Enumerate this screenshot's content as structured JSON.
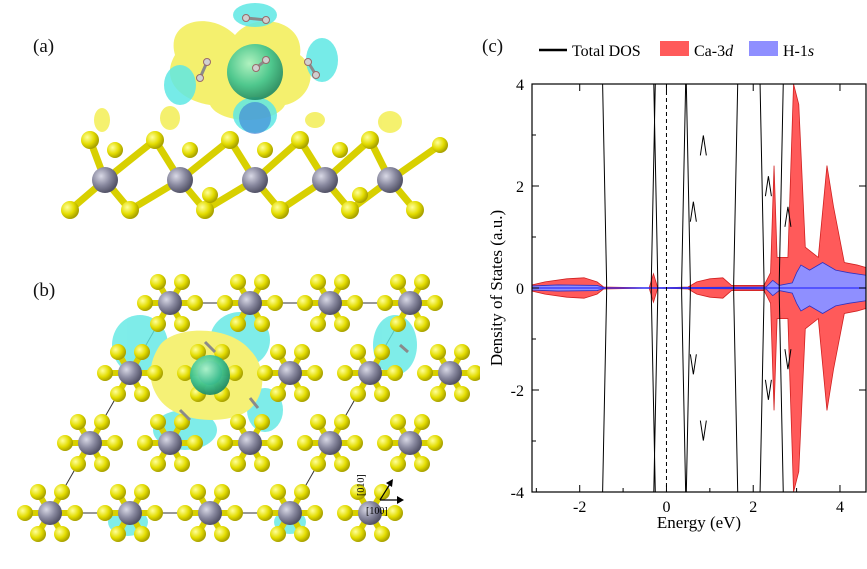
{
  "panels": {
    "a": "(a)",
    "b": "(b)",
    "c": "(c)"
  },
  "axis_indicator": {
    "dir1": "[010]",
    "dir2": "[100]"
  },
  "colors": {
    "sulfur": "#e8e000",
    "metal": "#85859a",
    "isosurface_yellow": "#f3ee55",
    "isosurface_cyan": "#5fe8e4",
    "calcium": "#3dc391",
    "total_dos": "#000000",
    "ca3d": "#ff5a5a",
    "h1s": "#8f8fff"
  },
  "chart_data": {
    "type": "area",
    "xlabel": "Energy (eV)",
    "ylabel": "Density of States (a.u.)",
    "xlim": [
      -3.1,
      4.6
    ],
    "ylim": [
      -4,
      4
    ],
    "xticks": [
      "-2",
      "0",
      "2",
      "4"
    ],
    "yticks": [
      "-4",
      "-2",
      "0",
      "2",
      "4"
    ],
    "fermi_level": 0,
    "legend": [
      {
        "name": "Total DOS",
        "kind": "line",
        "color": "#000000"
      },
      {
        "name": "Ca-3",
        "name_italic": "d",
        "kind": "fill",
        "color": "#ff5a5a"
      },
      {
        "name": "H-1",
        "name_italic": "s",
        "kind": "fill",
        "color": "#8f8fff"
      }
    ],
    "series": [
      {
        "name": "Total DOS",
        "kind": "line",
        "band_edges": [
          {
            "e": -1.38,
            "y": 4
          },
          {
            "e": -0.35,
            "y": 4
          },
          {
            "e": -0.2,
            "y": 4
          },
          {
            "e": 0.35,
            "y": 4
          },
          {
            "e": 0.55,
            "y": 4
          },
          {
            "e": 1.55,
            "y": 4
          },
          {
            "e": 2.25,
            "y": 4
          },
          {
            "e": 2.6,
            "y": 4
          }
        ]
      },
      {
        "name": "Ca-3d",
        "kind": "fill",
        "points": [
          {
            "e": -3.1,
            "y": 0.06
          },
          {
            "e": -2.8,
            "y": 0.12
          },
          {
            "e": -2.3,
            "y": 0.18
          },
          {
            "e": -1.9,
            "y": 0.2
          },
          {
            "e": -1.6,
            "y": 0.12
          },
          {
            "e": -1.45,
            "y": 0.02
          },
          {
            "e": -0.4,
            "y": 0.0
          },
          {
            "e": -0.3,
            "y": 0.28
          },
          {
            "e": -0.2,
            "y": 0.0
          },
          {
            "e": 0.5,
            "y": 0.02
          },
          {
            "e": 0.7,
            "y": 0.12
          },
          {
            "e": 1.0,
            "y": 0.18
          },
          {
            "e": 1.3,
            "y": 0.2
          },
          {
            "e": 1.5,
            "y": 0.05
          },
          {
            "e": 2.25,
            "y": 0.05
          },
          {
            "e": 2.4,
            "y": 0.3
          },
          {
            "e": 2.48,
            "y": 2.4
          },
          {
            "e": 2.55,
            "y": 0.6
          },
          {
            "e": 2.8,
            "y": 0.6
          },
          {
            "e": 2.93,
            "y": 4.0
          },
          {
            "e": 3.05,
            "y": 3.6
          },
          {
            "e": 3.2,
            "y": 0.8
          },
          {
            "e": 3.5,
            "y": 0.6
          },
          {
            "e": 3.7,
            "y": 2.4
          },
          {
            "e": 3.85,
            "y": 1.6
          },
          {
            "e": 4.1,
            "y": 0.5
          },
          {
            "e": 4.4,
            "y": 0.45
          },
          {
            "e": 4.6,
            "y": 0.4
          }
        ]
      },
      {
        "name": "H-1s",
        "kind": "fill",
        "points": [
          {
            "e": -3.1,
            "y": 0.04
          },
          {
            "e": -2.5,
            "y": 0.06
          },
          {
            "e": -1.6,
            "y": 0.05
          },
          {
            "e": -1.4,
            "y": 0.0
          },
          {
            "e": 2.3,
            "y": 0.02
          },
          {
            "e": 2.45,
            "y": 0.15
          },
          {
            "e": 2.6,
            "y": 0.05
          },
          {
            "e": 2.9,
            "y": 0.1
          },
          {
            "e": 3.0,
            "y": 0.3
          },
          {
            "e": 3.1,
            "y": 0.45
          },
          {
            "e": 3.3,
            "y": 0.35
          },
          {
            "e": 3.6,
            "y": 0.5
          },
          {
            "e": 3.9,
            "y": 0.35
          },
          {
            "e": 4.2,
            "y": 0.3
          },
          {
            "e": 4.6,
            "y": 0.25
          }
        ]
      }
    ]
  }
}
